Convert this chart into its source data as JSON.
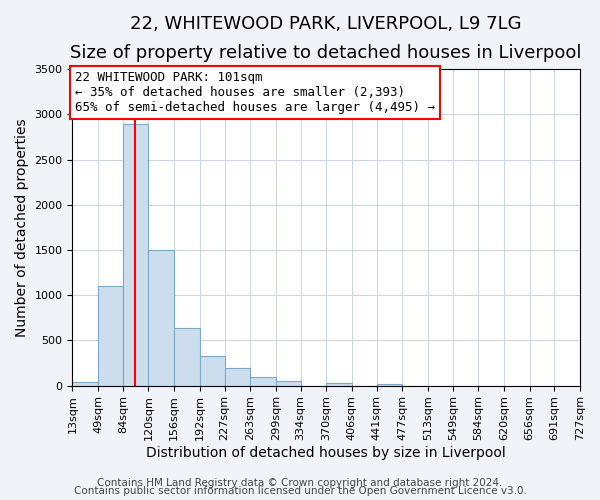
{
  "title": "22, WHITEWOOD PARK, LIVERPOOL, L9 7LG",
  "subtitle": "Size of property relative to detached houses in Liverpool",
  "xlabel": "Distribution of detached houses by size in Liverpool",
  "ylabel": "Number of detached properties",
  "bin_edges": [
    13,
    49,
    84,
    120,
    156,
    192,
    227,
    263,
    299,
    334,
    370,
    406,
    441,
    477,
    513,
    549,
    584,
    620,
    656,
    691,
    727
  ],
  "bin_counts": [
    40,
    1100,
    2900,
    1500,
    640,
    330,
    200,
    100,
    50,
    0,
    30,
    0,
    20,
    0,
    0,
    0,
    0,
    0,
    0,
    0
  ],
  "bar_color": "#ccdded",
  "bar_edge_color": "#7aaac8",
  "property_line_x": 101,
  "property_line_color": "red",
  "annotation_text": "22 WHITEWOOD PARK: 101sqm\n← 35% of detached houses are smaller (2,393)\n65% of semi-detached houses are larger (4,495) →",
  "annotation_box_color": "white",
  "annotation_box_edge_color": "red",
  "ylim": [
    0,
    3500
  ],
  "yticks": [
    0,
    500,
    1000,
    1500,
    2000,
    2500,
    3000,
    3500
  ],
  "tick_labels": [
    "13sqm",
    "49sqm",
    "84sqm",
    "120sqm",
    "156sqm",
    "192sqm",
    "227sqm",
    "263sqm",
    "299sqm",
    "334sqm",
    "370sqm",
    "406sqm",
    "441sqm",
    "477sqm",
    "513sqm",
    "549sqm",
    "584sqm",
    "620sqm",
    "656sqm",
    "691sqm",
    "727sqm"
  ],
  "footer1": "Contains HM Land Registry data © Crown copyright and database right 2024.",
  "footer2": "Contains public sector information licensed under the Open Government Licence v3.0.",
  "background_color": "#f0f4f8",
  "plot_background_color": "white",
  "title_fontsize": 13,
  "subtitle_fontsize": 11,
  "axis_label_fontsize": 10,
  "tick_fontsize": 8,
  "footer_fontsize": 7.5,
  "annotation_fontsize": 9
}
